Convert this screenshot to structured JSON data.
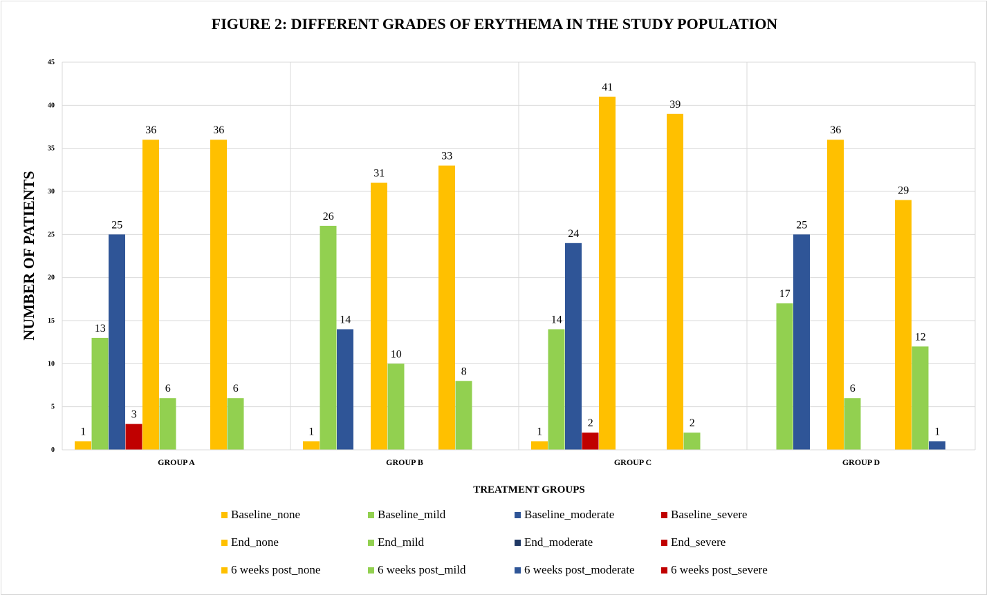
{
  "chart_data": {
    "type": "bar",
    "title": "FIGURE 2: DIFFERENT GRADES OF ERYTHEMA IN THE STUDY POPULATION",
    "xlabel": "TREATMENT GROUPS",
    "ylabel": "NUMBER OF PATIENTS",
    "ylim": [
      0,
      45
    ],
    "yticks": [
      0,
      5,
      10,
      15,
      20,
      25,
      30,
      35,
      40,
      45
    ],
    "grid": true,
    "legend_position": "bottom",
    "categories": [
      "GROUP A",
      "GROUP B",
      "GROUP C",
      "GROUP D"
    ],
    "series": [
      {
        "name": "Baseline_none",
        "color": "#FFC000",
        "values": [
          1,
          1,
          1,
          0
        ]
      },
      {
        "name": "Baseline_mild",
        "color": "#92D050",
        "values": [
          13,
          26,
          14,
          17
        ]
      },
      {
        "name": "Baseline_moderate",
        "color": "#2F5597",
        "values": [
          25,
          14,
          24,
          25
        ]
      },
      {
        "name": "Baseline_severe",
        "color": "#C00000",
        "values": [
          3,
          0,
          2,
          0
        ]
      },
      {
        "name": "End_none",
        "color": "#FFC000",
        "values": [
          36,
          31,
          41,
          36
        ]
      },
      {
        "name": "End_mild",
        "color": "#92D050",
        "values": [
          6,
          10,
          0,
          6
        ]
      },
      {
        "name": "End_moderate",
        "color": "#203864",
        "values": [
          0,
          0,
          0,
          0
        ]
      },
      {
        "name": "End_severe",
        "color": "#C00000",
        "values": [
          0,
          0,
          0,
          0
        ]
      },
      {
        "name": "6 weeks post_none",
        "color": "#FFC000",
        "values": [
          36,
          33,
          39,
          29
        ]
      },
      {
        "name": "6 weeks post_mild",
        "color": "#92D050",
        "values": [
          6,
          8,
          2,
          12
        ]
      },
      {
        "name": "6 weeks post_moderate",
        "color": "#2F5597",
        "values": [
          0,
          0,
          0,
          1
        ]
      },
      {
        "name": "6 weeks post_severe",
        "color": "#C00000",
        "values": [
          0,
          0,
          0,
          0
        ]
      }
    ]
  }
}
